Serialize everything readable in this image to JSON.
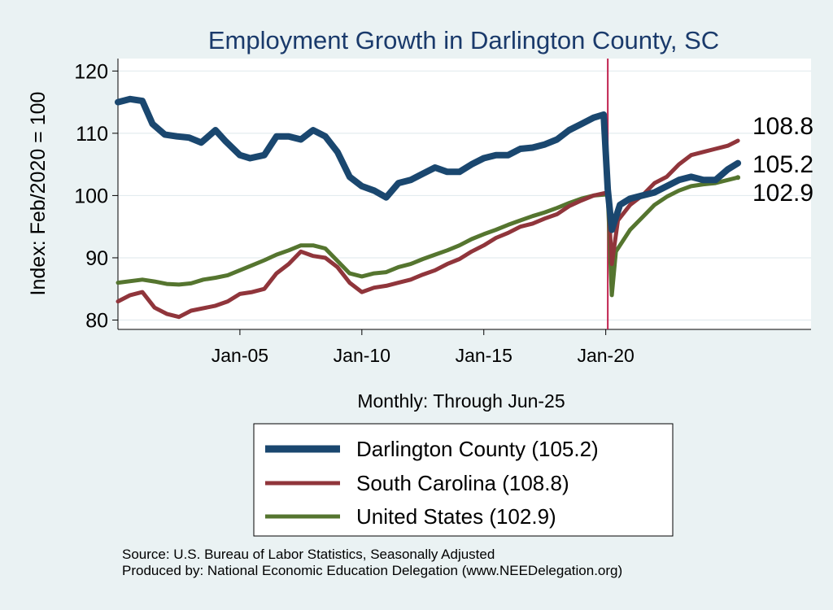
{
  "chart_data": {
    "type": "line",
    "title": "Employment Growth in Darlington  County, SC",
    "xlabel": "Monthly: Through Jun-25",
    "ylabel": "Index: Feb/2020 = 100",
    "x_ticks": [
      "Jan-05",
      "Jan-10",
      "Jan-15",
      "Jan-20"
    ],
    "y_ticks": [
      80,
      90,
      100,
      110,
      120
    ],
    "ylim": [
      78.5,
      122
    ],
    "xlim": [
      "Jan-00",
      "Jun-28"
    ],
    "vertical_line": "Feb-20",
    "grid": "horizontal",
    "legend_position": "bottom",
    "end_labels": [
      "108.8",
      "105.2",
      "102.9"
    ],
    "series": [
      {
        "name": "Darlington  County (105.2)",
        "color": "#1a476f",
        "points": [
          [
            "Jan-00",
            115
          ],
          [
            "Jul-00",
            115.5
          ],
          [
            "Jan-01",
            115.2
          ],
          [
            "Jun-01",
            111.5
          ],
          [
            "Dec-01",
            109.8
          ],
          [
            "Jun-02",
            109.5
          ],
          [
            "Dec-02",
            109.3
          ],
          [
            "Jun-03",
            108.5
          ],
          [
            "Jan-04",
            110.5
          ],
          [
            "Jun-04",
            108.7
          ],
          [
            "Jan-05",
            106.5
          ],
          [
            "Jun-05",
            106
          ],
          [
            "Jan-06",
            106.5
          ],
          [
            "Jul-06",
            109.5
          ],
          [
            "Jan-07",
            109.5
          ],
          [
            "Jul-07",
            109
          ],
          [
            "Jan-08",
            110.5
          ],
          [
            "Jul-08",
            109.5
          ],
          [
            "Jan-09",
            107
          ],
          [
            "Jul-09",
            103
          ],
          [
            "Jan-10",
            101.5
          ],
          [
            "Jul-10",
            100.8
          ],
          [
            "Jan-11",
            99.7
          ],
          [
            "Jul-11",
            102
          ],
          [
            "Jan-12",
            102.5
          ],
          [
            "Jul-12",
            103.5
          ],
          [
            "Jan-13",
            104.5
          ],
          [
            "Jul-13",
            103.8
          ],
          [
            "Jan-14",
            103.8
          ],
          [
            "Jul-14",
            105
          ],
          [
            "Jan-15",
            106
          ],
          [
            "Jul-15",
            106.5
          ],
          [
            "Jan-16",
            106.5
          ],
          [
            "Jul-16",
            107.5
          ],
          [
            "Jan-17",
            107.7
          ],
          [
            "Jul-17",
            108.2
          ],
          [
            "Jan-18",
            109
          ],
          [
            "Jul-18",
            110.5
          ],
          [
            "Jan-19",
            111.5
          ],
          [
            "Jul-19",
            112.5
          ],
          [
            "Dec-19",
            113
          ],
          [
            "Feb-20",
            101
          ],
          [
            "Apr-20",
            94.5
          ],
          [
            "Aug-20",
            98.5
          ],
          [
            "Jan-21",
            99.5
          ],
          [
            "Jul-21",
            100
          ],
          [
            "Jan-22",
            100.5
          ],
          [
            "Jul-22",
            101.5
          ],
          [
            "Jan-23",
            102.5
          ],
          [
            "Jul-23",
            103
          ],
          [
            "Jan-24",
            102.5
          ],
          [
            "Jul-24",
            102.5
          ],
          [
            "Jan-25",
            104.2
          ],
          [
            "Jun-25",
            105.2
          ]
        ]
      },
      {
        "name": "South Carolina (108.8)",
        "color": "#90353b",
        "points": [
          [
            "Jan-00",
            83
          ],
          [
            "Jul-00",
            84
          ],
          [
            "Jan-01",
            84.5
          ],
          [
            "Jul-01",
            82
          ],
          [
            "Jan-02",
            81
          ],
          [
            "Jul-02",
            80.5
          ],
          [
            "Jan-03",
            81.5
          ],
          [
            "Jan-04",
            82.3
          ],
          [
            "Jul-04",
            83
          ],
          [
            "Jan-05",
            84.2
          ],
          [
            "Jul-05",
            84.5
          ],
          [
            "Jan-06",
            85
          ],
          [
            "Jul-06",
            87.5
          ],
          [
            "Jan-07",
            89
          ],
          [
            "Jul-07",
            91
          ],
          [
            "Jan-08",
            90.3
          ],
          [
            "Jul-08",
            90
          ],
          [
            "Jan-09",
            88.5
          ],
          [
            "Jul-09",
            86
          ],
          [
            "Jan-10",
            84.5
          ],
          [
            "Jul-10",
            85.2
          ],
          [
            "Jan-11",
            85.5
          ],
          [
            "Jul-11",
            86
          ],
          [
            "Jan-12",
            86.5
          ],
          [
            "Jul-12",
            87.3
          ],
          [
            "Jan-13",
            88
          ],
          [
            "Jul-13",
            89
          ],
          [
            "Jan-14",
            89.8
          ],
          [
            "Jul-14",
            91
          ],
          [
            "Jan-15",
            92
          ],
          [
            "Jul-15",
            93.2
          ],
          [
            "Jan-16",
            94
          ],
          [
            "Jul-16",
            95
          ],
          [
            "Jan-17",
            95.5
          ],
          [
            "Jul-17",
            96.3
          ],
          [
            "Jan-18",
            97
          ],
          [
            "Jul-18",
            98.3
          ],
          [
            "Jan-19",
            99.2
          ],
          [
            "Jul-19",
            100
          ],
          [
            "Feb-20",
            100.5
          ],
          [
            "Apr-20",
            89
          ],
          [
            "Jul-20",
            96
          ],
          [
            "Jan-21",
            98.5
          ],
          [
            "Jul-21",
            100
          ],
          [
            "Jan-22",
            102
          ],
          [
            "Jul-22",
            103
          ],
          [
            "Jan-23",
            105
          ],
          [
            "Jul-23",
            106.5
          ],
          [
            "Jan-24",
            107
          ],
          [
            "Jul-24",
            107.5
          ],
          [
            "Jan-25",
            108
          ],
          [
            "Jun-25",
            108.8
          ]
        ]
      },
      {
        "name": "United States (102.9)",
        "color": "#55752f",
        "points": [
          [
            "Jan-00",
            86
          ],
          [
            "Jan-01",
            86.5
          ],
          [
            "Jul-01",
            86.2
          ],
          [
            "Jan-02",
            85.8
          ],
          [
            "Jul-02",
            85.7
          ],
          [
            "Jan-03",
            85.9
          ],
          [
            "Jul-03",
            86.5
          ],
          [
            "Jan-04",
            86.8
          ],
          [
            "Jul-04",
            87.2
          ],
          [
            "Jan-05",
            88
          ],
          [
            "Jul-05",
            88.8
          ],
          [
            "Jan-06",
            89.6
          ],
          [
            "Jul-06",
            90.5
          ],
          [
            "Jan-07",
            91.2
          ],
          [
            "Jul-07",
            92
          ],
          [
            "Jan-08",
            92
          ],
          [
            "Jul-08",
            91.5
          ],
          [
            "Jan-09",
            89.5
          ],
          [
            "Jul-09",
            87.5
          ],
          [
            "Jan-10",
            87
          ],
          [
            "Jul-10",
            87.5
          ],
          [
            "Jan-11",
            87.7
          ],
          [
            "Jul-11",
            88.5
          ],
          [
            "Jan-12",
            89
          ],
          [
            "Jul-12",
            89.8
          ],
          [
            "Jan-13",
            90.5
          ],
          [
            "Jul-13",
            91.2
          ],
          [
            "Jan-14",
            92
          ],
          [
            "Jul-14",
            93
          ],
          [
            "Jan-15",
            93.8
          ],
          [
            "Jul-15",
            94.5
          ],
          [
            "Jan-16",
            95.3
          ],
          [
            "Jul-16",
            96
          ],
          [
            "Jan-17",
            96.7
          ],
          [
            "Jul-17",
            97.3
          ],
          [
            "Jan-18",
            98
          ],
          [
            "Jul-18",
            98.8
          ],
          [
            "Jan-19",
            99.5
          ],
          [
            "Jul-19",
            100
          ],
          [
            "Feb-20",
            100.2
          ],
          [
            "Apr-20",
            84
          ],
          [
            "Jun-20",
            91
          ],
          [
            "Jan-21",
            94.5
          ],
          [
            "Jul-21",
            96.5
          ],
          [
            "Jan-22",
            98.5
          ],
          [
            "Jul-22",
            99.8
          ],
          [
            "Jan-23",
            100.8
          ],
          [
            "Jul-23",
            101.5
          ],
          [
            "Jan-24",
            101.8
          ],
          [
            "Jul-24",
            102
          ],
          [
            "Jan-25",
            102.5
          ],
          [
            "Jun-25",
            102.9
          ]
        ]
      }
    ]
  },
  "source_line1": "Source: U.S. Bureau of Labor Statistics, Seasonally Adjusted",
  "source_line2": "Produced by: National Economic Education Delegation (www.NEEDelegation.org)"
}
